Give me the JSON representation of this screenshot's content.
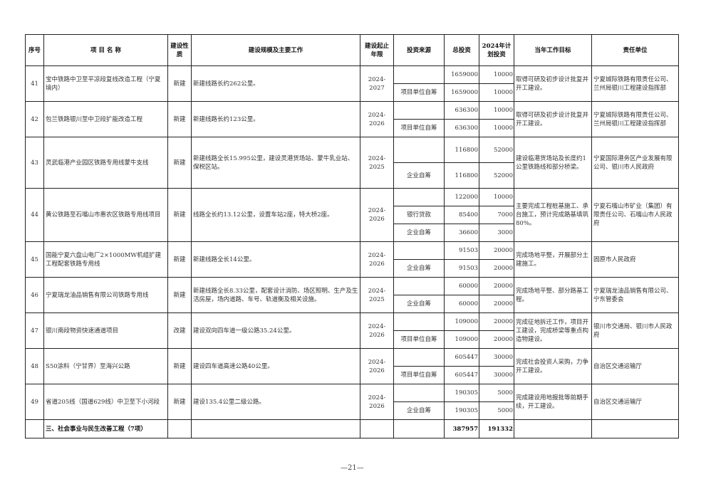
{
  "headers": [
    "序号",
    "项 目 名 称",
    "建设性质",
    "建设规模及主要工作",
    "建设起止年限",
    "投资来源",
    "总投资",
    "2024年计划投资",
    "当年工作目标",
    "责任单位"
  ],
  "projects": [
    {
      "no": "41",
      "name": "宝中铁路中卫至平凉段复线改造工程（宁夏境内）",
      "type": "新建",
      "scale": "新建线路长约262公里。",
      "period": "2024-2027",
      "rows": [
        {
          "source": "",
          "total": "1659000",
          "plan": "10000"
        },
        {
          "source": "项目单位自筹",
          "total": "1659000",
          "plan": "10000"
        }
      ],
      "target": "取得可研及初步设计批复并开工建设。",
      "unit": "宁夏城际铁路有限责任公司、兰州局银川工程建设指挥部"
    },
    {
      "no": "42",
      "name": "包兰铁路银川至中卫段扩能改造工程",
      "type": "新建",
      "scale": "新建线路长约123公里。",
      "period": "2024-2026",
      "rows": [
        {
          "source": "",
          "total": "636300",
          "plan": "10000"
        },
        {
          "source": "项目单位自筹",
          "total": "636300",
          "plan": "10000"
        }
      ],
      "target": "取得可研及初步设计批复并开工建设。",
      "unit": "宁夏城际铁路有限责任公司、兰州局银川工程建设指挥部"
    },
    {
      "no": "43",
      "name": "灵武临港产业园区铁路专用线蒙牛支线",
      "type": "新建",
      "scale": "新建线路全长15.995公里，建设灵港货场站、蒙牛乳业站、保税区站。",
      "period": "2024-2025",
      "rows": [
        {
          "source": "",
          "total": "116800",
          "plan": "52000"
        },
        {
          "source": "企业自筹",
          "total": "116800",
          "plan": "52000"
        }
      ],
      "target": "建设临港货场站及长度约1公里铁路线和部分桥梁。",
      "unit": "宁夏国际港务区产业发展有限公司、银川市人民政府"
    },
    {
      "no": "44",
      "name": "黄公铁路至石嘴山市惠农区铁路专用线项目",
      "type": "新建",
      "scale": "线路全长约13.12公里，设置车站2座，特大桥2座。",
      "period": "2024-2026",
      "rows": [
        {
          "source": "",
          "total": "122000",
          "plan": "10000"
        },
        {
          "source": "银行贷款",
          "total": "85400",
          "plan": "7000"
        },
        {
          "source": "企业自筹",
          "total": "36600",
          "plan": "3000"
        }
      ],
      "target": "主要完成工程桩基施工、承台施工，预计完成路基填筑80%。",
      "unit": "宁夏石嘴山市矿业（集团）有限责任公司、石嘴山市人民政府"
    },
    {
      "no": "45",
      "name": "国能宁夏六盘山电厂2×1000MW机组扩建工程配套铁路专用线",
      "type": "新建",
      "scale": "新建线路全长14公里。",
      "period": "2024-2026",
      "rows": [
        {
          "source": "",
          "total": "91503",
          "plan": "20000"
        },
        {
          "source": "企业自筹",
          "total": "91503",
          "plan": "20000"
        }
      ],
      "target": "完成场地平整，开展部分土建施工。",
      "unit": "固原市人民政府"
    },
    {
      "no": "46",
      "name": "宁夏瑞龙油品销售有限公司铁路专用线",
      "type": "新建",
      "scale": "新建线路全长8.33公里，配套设计消防、场区照明、生产及生活房屋，场内道路、车号、轨道衡及相关设施。",
      "period": "2024-2025",
      "rows": [
        {
          "source": "",
          "total": "60000",
          "plan": "20000"
        },
        {
          "source": "企业自筹",
          "total": "60000",
          "plan": "20000"
        }
      ],
      "target": "完成场地平整、部分路基工程。",
      "unit": "宁夏瑞龙油品销售有限公司、宁东管委会"
    },
    {
      "no": "47",
      "name": "银川南段物资快速通道项目",
      "type": "改建",
      "scale": "建设双向四车道一级公路35.24公里。",
      "period": "2024-2026",
      "rows": [
        {
          "source": "",
          "total": "109000",
          "plan": "20000"
        },
        {
          "source": "项目单位自筹",
          "total": "109000",
          "plan": "20000"
        }
      ],
      "target": "完成征地拆迁工作，项目开工建设，完成桥梁等重点构造物建设。",
      "unit": "银川市交通局、银川市人民政府"
    },
    {
      "no": "48",
      "name": "S50涂料（宁甘界）至海兴公路",
      "type": "新建",
      "scale": "建设四车道高速公路40公里。",
      "period": "2024-2026",
      "rows": [
        {
          "source": "",
          "total": "605447",
          "plan": "30000"
        },
        {
          "source": "项目单位自筹",
          "total": "605447",
          "plan": "30000"
        }
      ],
      "target": "完成社会投资人采购，力争开工建设。",
      "unit": "自治区交通运输厅"
    },
    {
      "no": "49",
      "name": "省道205线（国道629线）中卫至下小河段",
      "type": "新建",
      "scale": "建设135.4公里二级公路。",
      "period": "2024-2026",
      "rows": [
        {
          "source": "",
          "total": "190305",
          "plan": "5000"
        },
        {
          "source": "企业自筹",
          "total": "190305",
          "plan": "5000"
        }
      ],
      "target": "完成建设用地报批等前期手续，开工建设。",
      "unit": "自治区交通运输厅"
    }
  ],
  "section_total": {
    "label": "三、社会事业与民生改善工程（7项）",
    "total": "387957",
    "plan": "191332"
  },
  "page_number": "—21—"
}
